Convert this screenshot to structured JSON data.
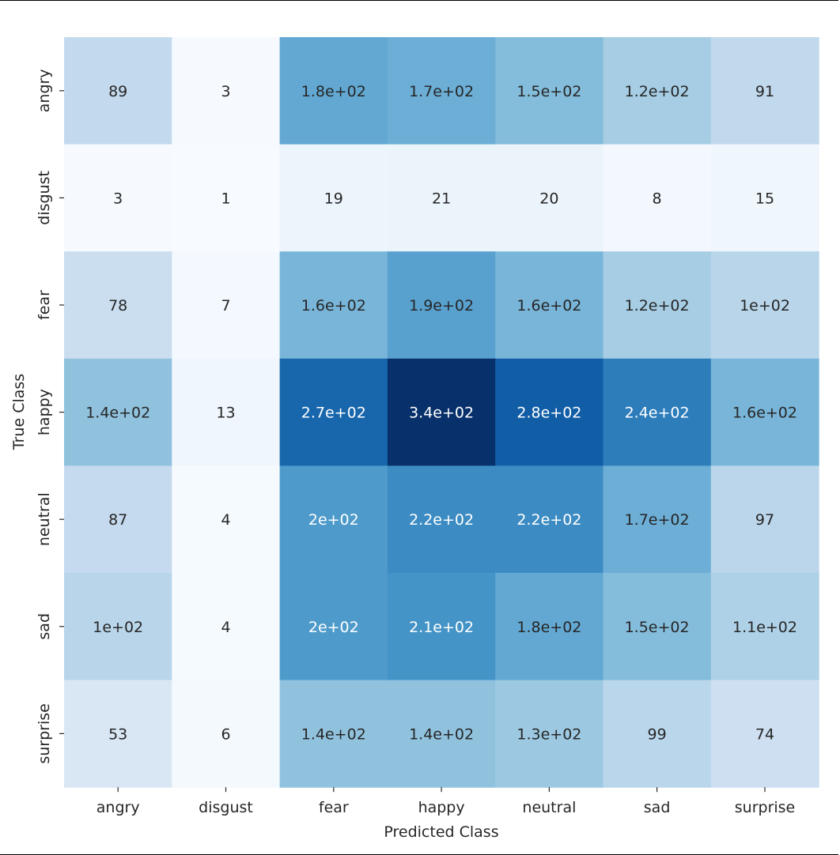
{
  "chart_data": {
    "type": "heatmap",
    "title": "",
    "xlabel": "Predicted Class",
    "ylabel": "True Class",
    "x_categories": [
      "angry",
      "disgust",
      "fear",
      "happy",
      "neutral",
      "sad",
      "surprise"
    ],
    "y_categories": [
      "angry",
      "disgust",
      "fear",
      "happy",
      "neutral",
      "sad",
      "surprise"
    ],
    "values": [
      [
        89,
        3,
        180,
        170,
        150,
        120,
        91
      ],
      [
        3,
        1,
        19,
        21,
        20,
        8,
        15
      ],
      [
        78,
        7,
        160,
        190,
        160,
        120,
        100
      ],
      [
        140,
        13,
        270,
        340,
        280,
        240,
        160
      ],
      [
        87,
        4,
        200,
        220,
        220,
        170,
        97
      ],
      [
        100,
        4,
        200,
        210,
        180,
        150,
        110
      ],
      [
        53,
        6,
        140,
        140,
        130,
        99,
        74
      ]
    ],
    "annotations": [
      [
        "89",
        "3",
        "1.8e+02",
        "1.7e+02",
        "1.5e+02",
        "1.2e+02",
        "91"
      ],
      [
        "3",
        "1",
        "19",
        "21",
        "20",
        "8",
        "15"
      ],
      [
        "78",
        "7",
        "1.6e+02",
        "1.9e+02",
        "1.6e+02",
        "1.2e+02",
        "1e+02"
      ],
      [
        "1.4e+02",
        "13",
        "2.7e+02",
        "3.4e+02",
        "2.8e+02",
        "2.4e+02",
        "1.6e+02"
      ],
      [
        "87",
        "4",
        "2e+02",
        "2.2e+02",
        "2.2e+02",
        "1.7e+02",
        "97"
      ],
      [
        "1e+02",
        "4",
        "2e+02",
        "2.1e+02",
        "1.8e+02",
        "1.5e+02",
        "1.1e+02"
      ],
      [
        "53",
        "6",
        "1.4e+02",
        "1.4e+02",
        "1.3e+02",
        "99",
        "74"
      ]
    ],
    "colormap": "Blues",
    "colorbar": false,
    "grid": false,
    "colors": {
      "low": "#f7fbff",
      "high": "#08306b",
      "text_dark": "#262626",
      "text_light": "#ffffff"
    }
  }
}
